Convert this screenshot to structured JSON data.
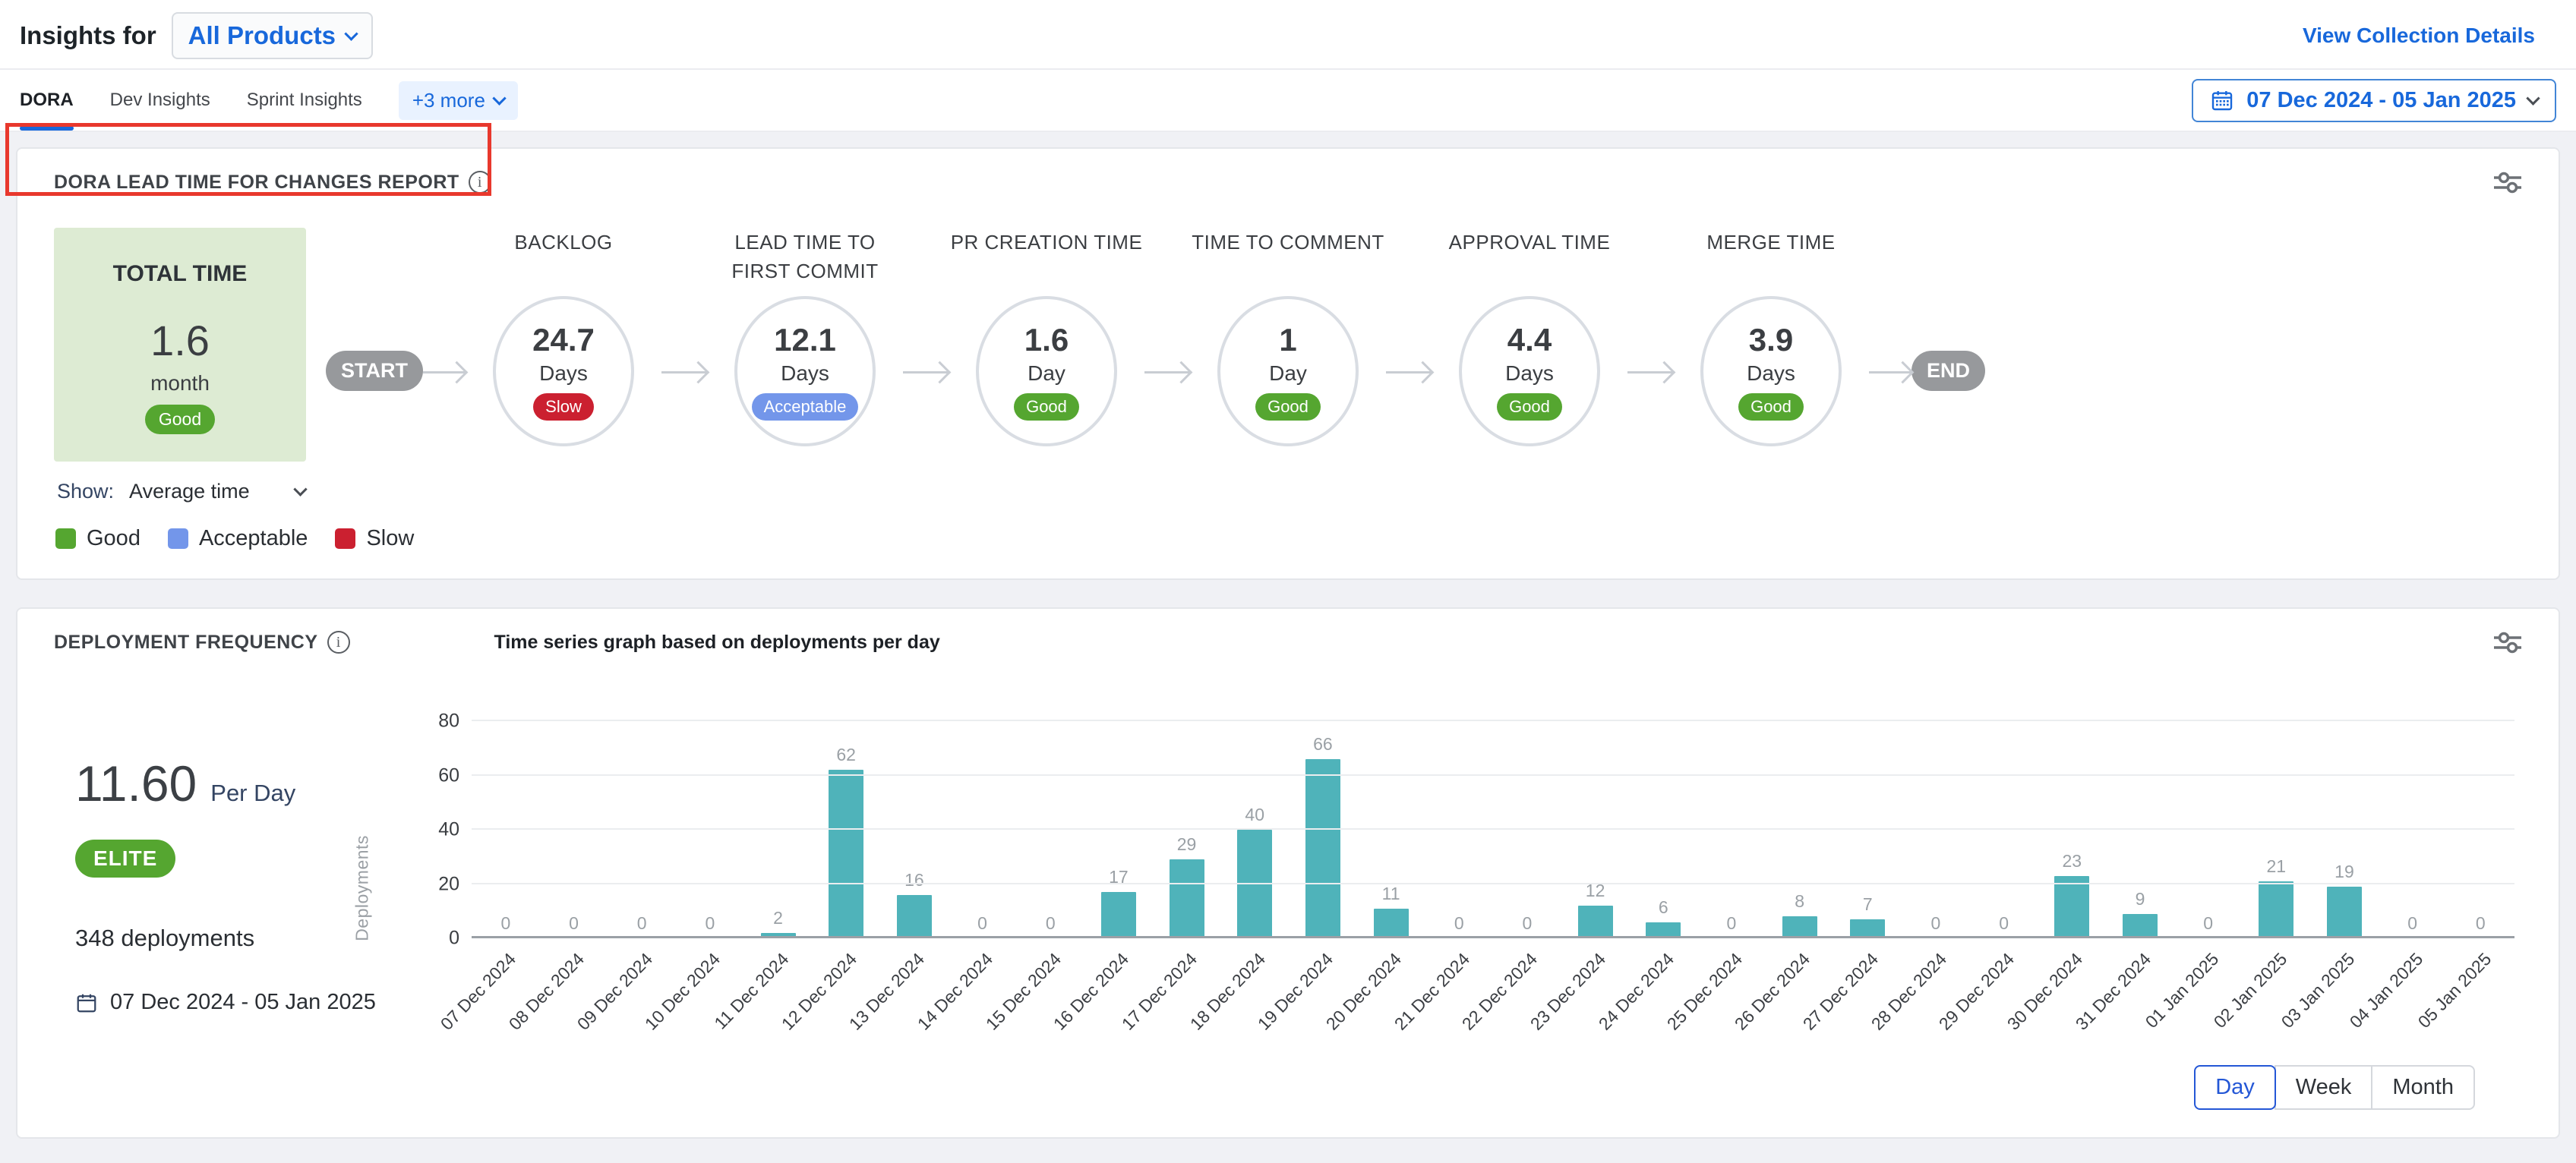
{
  "header": {
    "title": "Insights for",
    "product_selector": "All Products",
    "view_collection_details": "View Collection Details"
  },
  "tabs": {
    "items": [
      {
        "label": "DORA",
        "active": true
      },
      {
        "label": "Dev Insights",
        "active": false
      },
      {
        "label": "Sprint Insights",
        "active": false
      }
    ],
    "more_label": "+3 more",
    "date_range": "07 Dec 2024 - 05 Jan 2025"
  },
  "lead_time_card": {
    "title": "DORA LEAD TIME FOR CHANGES REPORT",
    "total": {
      "label": "TOTAL TIME",
      "value": "1.6",
      "unit": "month",
      "status": "Good"
    },
    "start_label": "START",
    "end_label": "END",
    "stages": [
      {
        "label": "BACKLOG",
        "value": "24.7",
        "unit": "Days",
        "status": "Slow"
      },
      {
        "label": "LEAD TIME TO FIRST COMMIT",
        "value": "12.1",
        "unit": "Days",
        "status": "Acceptable"
      },
      {
        "label": "PR CREATION TIME",
        "value": "1.6",
        "unit": "Day",
        "status": "Good"
      },
      {
        "label": "TIME TO COMMENT",
        "value": "1",
        "unit": "Day",
        "status": "Good"
      },
      {
        "label": "APPROVAL TIME",
        "value": "4.4",
        "unit": "Days",
        "status": "Good"
      },
      {
        "label": "MERGE TIME",
        "value": "3.9",
        "unit": "Days",
        "status": "Good"
      }
    ],
    "show_label": "Show:",
    "show_value": "Average time",
    "legend": [
      {
        "label": "Good",
        "color": "#55a630"
      },
      {
        "label": "Acceptable",
        "color": "#7396ea"
      },
      {
        "label": "Slow",
        "color": "#cb2030"
      }
    ]
  },
  "deployment_card": {
    "title": "DEPLOYMENT FREQUENCY",
    "subtitle": "Time series graph based on deployments per day",
    "rate_value": "11.60",
    "rate_unit": "Per Day",
    "tier": "ELITE",
    "total_deployments": "348 deployments",
    "date_range": "07 Dec 2024 - 05 Jan 2025",
    "granularity": [
      "Day",
      "Week",
      "Month"
    ],
    "granularity_active": "Day"
  },
  "chart_data": {
    "type": "bar",
    "title": "Time series graph based on deployments per day",
    "xlabel": "",
    "ylabel": "Deployments",
    "ylim": [
      0,
      80
    ],
    "yticks": [
      0,
      20,
      40,
      60,
      80
    ],
    "grid": true,
    "bar_color": "#4fb3ba",
    "categories": [
      "07 Dec 2024",
      "08 Dec 2024",
      "09 Dec 2024",
      "10 Dec 2024",
      "11 Dec 2024",
      "12 Dec 2024",
      "13 Dec 2024",
      "14 Dec 2024",
      "15 Dec 2024",
      "16 Dec 2024",
      "17 Dec 2024",
      "18 Dec 2024",
      "19 Dec 2024",
      "20 Dec 2024",
      "21 Dec 2024",
      "22 Dec 2024",
      "23 Dec 2024",
      "24 Dec 2024",
      "25 Dec 2024",
      "26 Dec 2024",
      "27 Dec 2024",
      "28 Dec 2024",
      "29 Dec 2024",
      "30 Dec 2024",
      "31 Dec 2024",
      "01 Jan 2025",
      "02 Jan 2025",
      "03 Jan 2025",
      "04 Jan 2025",
      "05 Jan 2025"
    ],
    "values": [
      0,
      0,
      0,
      0,
      2,
      62,
      16,
      0,
      0,
      17,
      29,
      40,
      66,
      11,
      0,
      0,
      12,
      6,
      0,
      8,
      7,
      0,
      0,
      23,
      9,
      0,
      21,
      19,
      0,
      0
    ]
  },
  "colors": {
    "Good": "#55a630",
    "Acceptable": "#7396ea",
    "Slow": "#cb2030",
    "accent_blue": "#1868db",
    "bar_teal": "#4fb3ba",
    "annotation_red": "#e8382d"
  }
}
